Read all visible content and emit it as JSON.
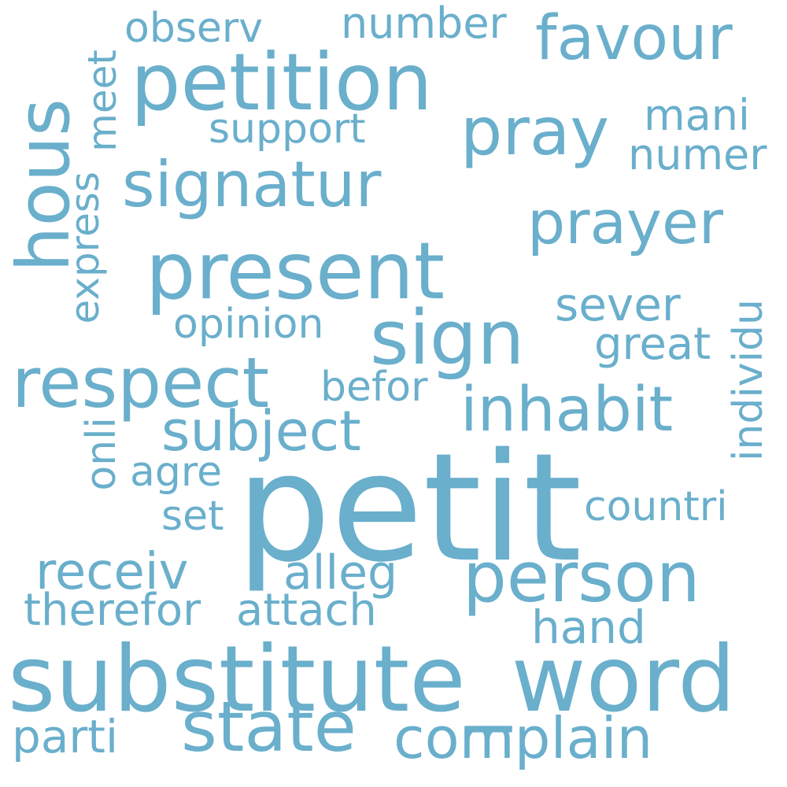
{
  "cloud": {
    "color": "#6aafcc",
    "background": "#ffffff",
    "words": {
      "substitute_word": "substitute_word",
      "petit": "petit",
      "petition": "petition",
      "present": "present",
      "sign": "sign",
      "respect": "respect",
      "person": "person",
      "state": "state",
      "signatur": "signatur",
      "pray": "pray",
      "inhabit": "inhabit",
      "favour": "favour",
      "prayer": "prayer",
      "complain": "complain",
      "subject": "subject",
      "hous": "hous",
      "receiv": "receiv",
      "parti": "parti",
      "alleg": "alleg",
      "attach": "attach",
      "therefor": "therefor",
      "hand": "hand",
      "sever": "sever",
      "great": "great",
      "countri": "countri",
      "individu": "individu",
      "befor": "befor",
      "opinion": "opinion",
      "support": "support",
      "numer": "numer",
      "mani": "mani",
      "number": "number",
      "observ": "observ",
      "meet": "meet",
      "express": "express",
      "onli": "onli",
      "agre": "agre",
      "set": "set"
    }
  }
}
